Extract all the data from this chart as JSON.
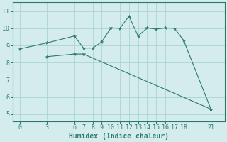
{
  "xlabel": "Humidex (Indice chaleur)",
  "bg_color": "#d4edec",
  "line_color": "#2a7a6a",
  "xlim": [
    -0.8,
    22.5
  ],
  "ylim": [
    4.6,
    11.5
  ],
  "yticks": [
    5,
    6,
    7,
    8,
    9,
    10,
    11
  ],
  "xticks": [
    0,
    3,
    6,
    7,
    8,
    9,
    10,
    11,
    12,
    13,
    14,
    15,
    16,
    17,
    18,
    21
  ],
  "line1_x": [
    0,
    3,
    6,
    7,
    8,
    9,
    10,
    11,
    12,
    13,
    14,
    15,
    16,
    17,
    18,
    21
  ],
  "line1_y": [
    8.8,
    9.15,
    9.55,
    8.85,
    8.85,
    9.2,
    10.02,
    10.0,
    10.7,
    9.55,
    10.02,
    9.95,
    10.02,
    10.0,
    9.3,
    5.3
  ],
  "line2_x": [
    3,
    6,
    7,
    21
  ],
  "line2_y": [
    8.35,
    8.5,
    8.5,
    5.3
  ],
  "grid_color": "#aad4d0",
  "tick_fontsize": 6.0,
  "xlabel_fontsize": 7.0
}
